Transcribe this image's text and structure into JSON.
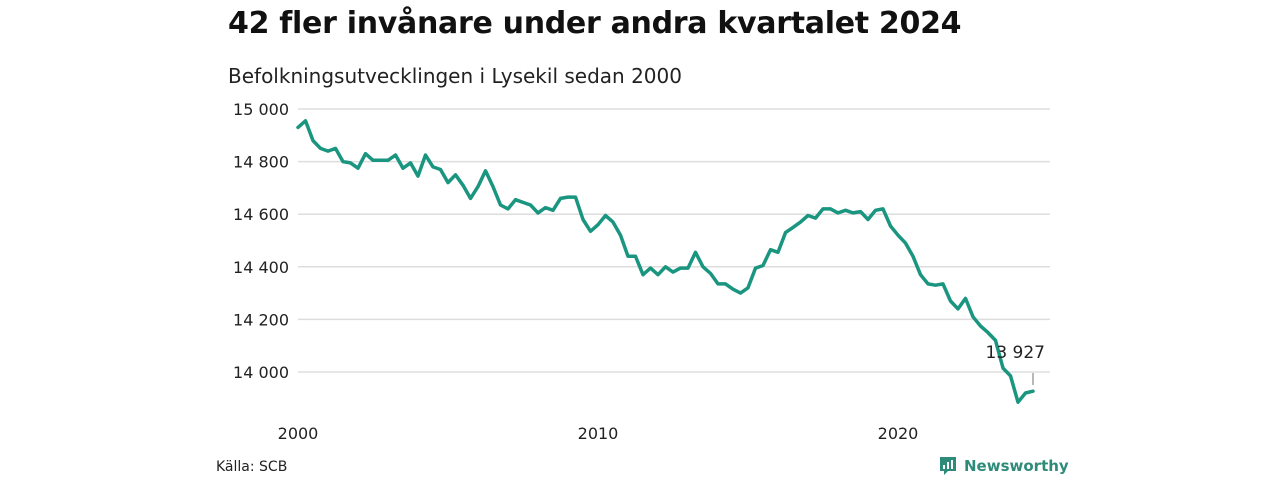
{
  "title": "42 fler invånare under andra kvartalet 2024",
  "subtitle": "Befolkningsutvecklingen i Lysekil sedan 2000",
  "source": "Källa: SCB",
  "brand": {
    "name": "Newsworthy",
    "color": "#2e8b7a"
  },
  "colors": {
    "line": "#1a9580",
    "grid": "#dddddd"
  },
  "chart_data": {
    "type": "line",
    "title": "42 fler invånare under andra kvartalet 2024",
    "subtitle": "Befolkningsutvecklingen i Lysekil sedan 2000",
    "xlabel": "",
    "ylabel": "",
    "xlim": [
      2000,
      2024.5
    ],
    "ylim": [
      13880,
      15000
    ],
    "x_ticks": [
      2000,
      2010,
      2020
    ],
    "x_tick_labels": [
      "2000",
      "2010",
      "2020"
    ],
    "y_ticks": [
      14000,
      14200,
      14400,
      14600,
      14800,
      15000
    ],
    "y_tick_labels": [
      "14 000",
      "14 200",
      "14 400",
      "14 600",
      "14 800",
      "15 000"
    ],
    "grid": true,
    "annotation": {
      "x": 2024.5,
      "y": 13927,
      "label": "13 927"
    },
    "series": [
      {
        "x": [
          2000.0,
          2000.25,
          2000.5,
          2000.75,
          2001.0,
          2001.25,
          2001.5,
          2001.75,
          2002.0,
          2002.25,
          2002.5,
          2002.75,
          2003.0,
          2003.25,
          2003.5,
          2003.75,
          2004.0,
          2004.25,
          2004.5,
          2004.75,
          2005.0,
          2005.25,
          2005.5,
          2005.75,
          2006.0,
          2006.25,
          2006.5,
          2006.75,
          2007.0,
          2007.25,
          2007.5,
          2007.75,
          2008.0,
          2008.25,
          2008.5,
          2008.75,
          2009.0,
          2009.25,
          2009.5,
          2009.75,
          2010.0,
          2010.25,
          2010.5,
          2010.75,
          2011.0,
          2011.25,
          2011.5,
          2011.75,
          2012.0,
          2012.25,
          2012.5,
          2012.75,
          2013.0,
          2013.25,
          2013.5,
          2013.75,
          2014.0,
          2014.25,
          2014.5,
          2014.75,
          2015.0,
          2015.25,
          2015.5,
          2015.75,
          2016.0,
          2016.25,
          2016.5,
          2016.75,
          2017.0,
          2017.25,
          2017.5,
          2017.75,
          2018.0,
          2018.25,
          2018.5,
          2018.75,
          2019.0,
          2019.25,
          2019.5,
          2019.75,
          2020.0,
          2020.25,
          2020.5,
          2020.75,
          2021.0,
          2021.25,
          2021.5,
          2021.75,
          2022.0,
          2022.25,
          2022.5,
          2022.75,
          2023.0,
          2023.25,
          2023.5,
          2023.75,
          2024.0,
          2024.25,
          2024.5
        ],
        "y": [
          14930,
          14955,
          14880,
          14850,
          14840,
          14850,
          14800,
          14795,
          14775,
          14830,
          14805,
          14805,
          14805,
          14825,
          14775,
          14795,
          14745,
          14825,
          14780,
          14770,
          14720,
          14750,
          14710,
          14660,
          14705,
          14765,
          14705,
          14635,
          14620,
          14655,
          14645,
          14635,
          14605,
          14625,
          14615,
          14660,
          14665,
          14665,
          14580,
          14535,
          14560,
          14595,
          14570,
          14520,
          14440,
          14440,
          14370,
          14395,
          14370,
          14400,
          14380,
          14395,
          14395,
          14455,
          14400,
          14375,
          14335,
          14335,
          14315,
          14300,
          14320,
          14395,
          14405,
          14465,
          14455,
          14530,
          14550,
          14570,
          14595,
          14585,
          14620,
          14620,
          14605,
          14615,
          14605,
          14610,
          14580,
          14615,
          14620,
          14555,
          14520,
          14490,
          14440,
          14370,
          14335,
          14330,
          14335,
          14270,
          14240,
          14280,
          14210,
          14175,
          14150,
          14120,
          14015,
          13985,
          13885,
          13920,
          13927
        ]
      }
    ]
  }
}
